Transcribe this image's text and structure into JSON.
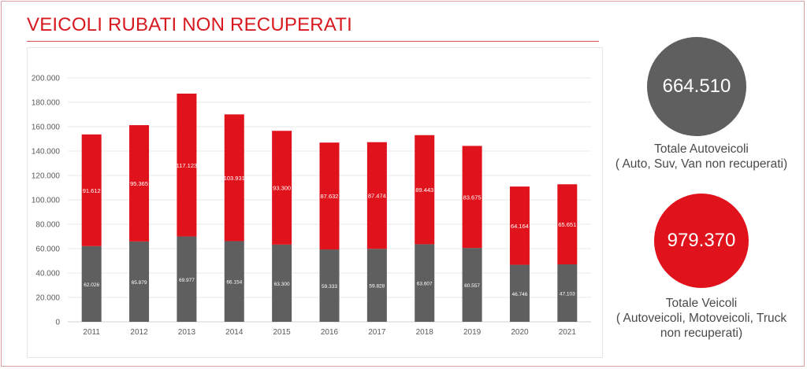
{
  "header": {
    "title": "VEICOLI RUBATI NON RECUPERATI"
  },
  "colors": {
    "accent": "#d71920",
    "red_series": "#e0131c",
    "grey_series": "#5f5f5f"
  },
  "summary": {
    "autoveicoli": {
      "value": "664.510",
      "label_line1": "Totale Autoveicoli",
      "label_line2": "( Auto, Suv, Van non recuperati)"
    },
    "veicoli": {
      "value": "979.370",
      "label_line1": "Totale Veicoli",
      "label_line2": "( Autoveicoli, Motoveicoli, Truck",
      "label_line3": "non recuperati)"
    }
  },
  "chart_data": {
    "type": "bar",
    "stacked": true,
    "categories": [
      "2011",
      "2012",
      "2013",
      "2014",
      "2015",
      "2016",
      "2017",
      "2018",
      "2019",
      "2020",
      "2021"
    ],
    "series": [
      {
        "color": "#5f5f5f",
        "values": [
          62026,
          65879,
          69977,
          66154,
          63300,
          59333,
          59828,
          63607,
          60557,
          46746,
          47103
        ],
        "labels": [
          "62.026",
          "65.879",
          "69.977",
          "66.154",
          "63.300",
          "59.333",
          "59.828",
          "63.607",
          "60.557",
          "46.746",
          "47.103"
        ]
      },
      {
        "color": "#e0131c",
        "values": [
          91612,
          95365,
          117123,
          103931,
          93300,
          87632,
          87474,
          89443,
          83675,
          64164,
          65651
        ],
        "labels": [
          "91.612",
          "95.365",
          "117.123",
          "103.931",
          "93.300",
          "87.632",
          "87.474",
          "89.443",
          "83.675",
          "64.164",
          "65.651"
        ]
      }
    ],
    "ylim": [
      0,
      200000
    ],
    "yticks": [
      "0",
      "20.000",
      "40.000",
      "60.000",
      "80.000",
      "100.000",
      "120.000",
      "140.000",
      "160.000",
      "180.000",
      "200.000"
    ],
    "grid": true,
    "legend": "none"
  }
}
